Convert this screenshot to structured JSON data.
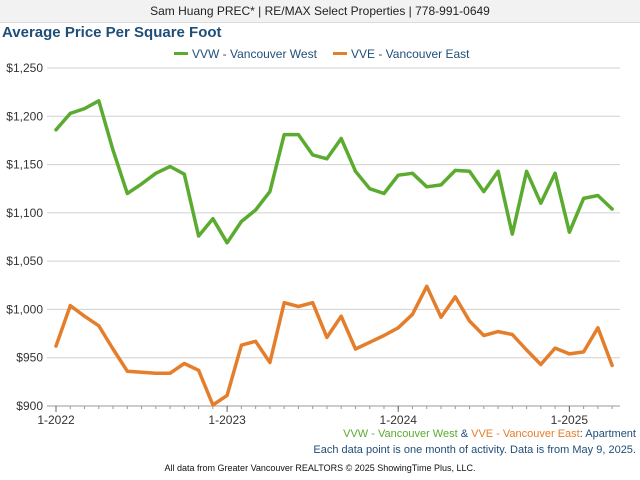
{
  "header": {
    "text": "Sam Huang PREC* | RE/MAX Select Properties | 778-991-0649"
  },
  "colors": {
    "vvw": "#5aab2f",
    "vve": "#e57e2b",
    "title": "#1f4e79"
  },
  "chart_data": {
    "type": "line",
    "title": "Average Price Per Square Foot",
    "xlabel": "",
    "ylabel": "",
    "x": [
      "2022-01",
      "2022-02",
      "2022-03",
      "2022-04",
      "2022-05",
      "2022-06",
      "2022-07",
      "2022-08",
      "2022-09",
      "2022-10",
      "2022-11",
      "2022-12",
      "2023-01",
      "2023-02",
      "2023-03",
      "2023-04",
      "2023-05",
      "2023-06",
      "2023-07",
      "2023-08",
      "2023-09",
      "2023-10",
      "2023-11",
      "2023-12",
      "2024-01",
      "2024-02",
      "2024-03",
      "2024-04",
      "2024-05",
      "2024-06",
      "2024-07",
      "2024-08",
      "2024-09",
      "2024-10",
      "2024-11",
      "2024-12",
      "2025-01",
      "2025-02",
      "2025-03",
      "2025-04"
    ],
    "xticks": [
      "1-2022",
      "1-2023",
      "1-2024",
      "1-2025"
    ],
    "ylim": [
      900,
      1250
    ],
    "yticks": [
      "$900",
      "$950",
      "$1,000",
      "$1,050",
      "$1,100",
      "$1,150",
      "$1,200",
      "$1,250"
    ],
    "grid": true,
    "legend_position": "top",
    "series": [
      {
        "name": "VVW - Vancouver West",
        "color": "#5aab2f",
        "values": [
          1186,
          1203,
          1208,
          1216,
          1165,
          1120,
          1130,
          1141,
          1148,
          1140,
          1076,
          1094,
          1069,
          1091,
          1103,
          1122,
          1181,
          1181,
          1160,
          1156,
          1177,
          1143,
          1125,
          1120,
          1139,
          1141,
          1127,
          1129,
          1144,
          1143,
          1122,
          1143,
          1078,
          1143,
          1110,
          1141,
          1080,
          1115,
          1118,
          1104
        ]
      },
      {
        "name": "VVE - Vancouver East",
        "color": "#e57e2b",
        "values": [
          962,
          1004,
          993,
          983,
          959,
          936,
          935,
          934,
          934,
          944,
          937,
          901,
          911,
          963,
          967,
          945,
          1007,
          1003,
          1007,
          971,
          993,
          959,
          966,
          973,
          981,
          995,
          1024,
          992,
          1013,
          988,
          973,
          977,
          974,
          958,
          943,
          960,
          954,
          956,
          981,
          942
        ]
      }
    ]
  },
  "captions": {
    "line1_vvw": "VVW - Vancouver West",
    "line1_amp": " & ",
    "line1_vve": "VVE - Vancouver East",
    "line1_suffix": ": Apartment",
    "line2": "Each data point is one month of activity. Data is from May 9, 2025."
  },
  "footer": {
    "text": "All data from Greater Vancouver REALTORS © 2025 ShowingTime Plus, LLC."
  }
}
